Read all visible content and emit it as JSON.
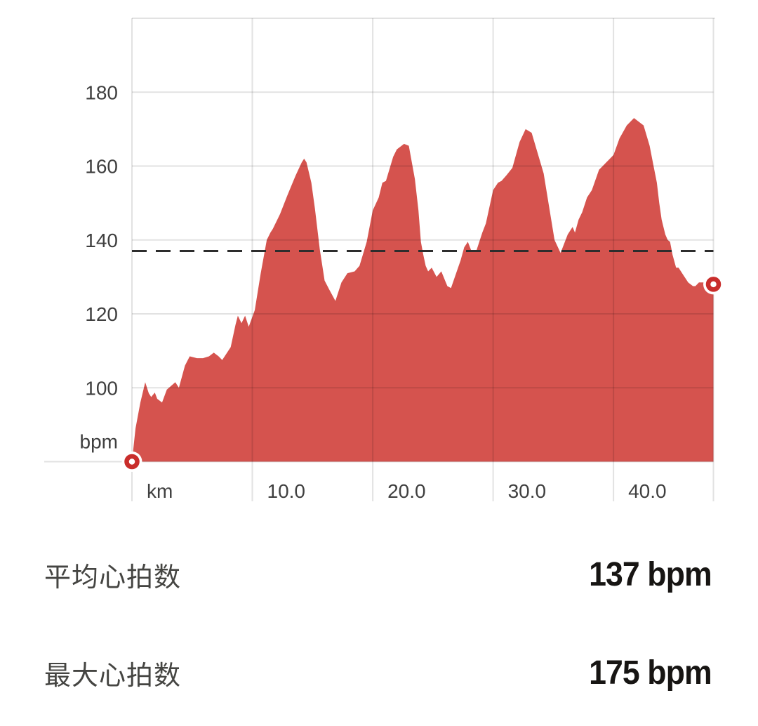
{
  "chart_data": {
    "type": "area",
    "title": "",
    "x_unit": "km",
    "y_unit": "bpm",
    "x_range": [
      0,
      48.3
    ],
    "y_range": [
      80,
      200
    ],
    "grid": true,
    "legend": "none",
    "average_line_bpm": 137,
    "start_end_markers": true,
    "x_ticks": [
      {
        "value": 0,
        "label": "km"
      },
      {
        "value": 10,
        "label": "10.0"
      },
      {
        "value": 20,
        "label": "20.0"
      },
      {
        "value": 30,
        "label": "30.0"
      },
      {
        "value": 40,
        "label": "40.0"
      }
    ],
    "y_ticks": [
      {
        "value": 100,
        "label": "100"
      },
      {
        "value": 120,
        "label": "120"
      },
      {
        "value": 140,
        "label": "140"
      },
      {
        "value": 160,
        "label": "160"
      },
      {
        "value": 180,
        "label": "180"
      }
    ],
    "y_axis_unit_label": "bpm",
    "series": [
      {
        "name": "heart-rate",
        "color": "#d5534e",
        "points": [
          [
            0,
            80
          ],
          [
            0.3,
            89
          ],
          [
            0.7,
            96
          ],
          [
            1.1,
            101.5
          ],
          [
            1.4,
            98.5
          ],
          [
            1.6,
            97.5
          ],
          [
            1.9,
            98.7
          ],
          [
            2.1,
            97
          ],
          [
            2.5,
            96
          ],
          [
            2.9,
            99.5
          ],
          [
            3.6,
            101.5
          ],
          [
            3.9,
            100
          ],
          [
            4.4,
            106
          ],
          [
            4.8,
            108.5
          ],
          [
            5.4,
            108
          ],
          [
            5.9,
            108
          ],
          [
            6.4,
            108.5
          ],
          [
            6.8,
            109.5
          ],
          [
            7.2,
            108.5
          ],
          [
            7.5,
            107.5
          ],
          [
            8.2,
            111
          ],
          [
            8.6,
            117
          ],
          [
            8.8,
            119.5
          ],
          [
            9.1,
            117.5
          ],
          [
            9.4,
            119.5
          ],
          [
            9.7,
            116.5
          ],
          [
            10.2,
            121
          ],
          [
            10.7,
            131
          ],
          [
            11.2,
            140
          ],
          [
            11.5,
            142
          ],
          [
            11.7,
            143
          ],
          [
            12.3,
            147
          ],
          [
            12.9,
            152
          ],
          [
            13.6,
            157.5
          ],
          [
            14.1,
            161
          ],
          [
            14.3,
            162
          ],
          [
            14.5,
            161
          ],
          [
            14.9,
            155.5
          ],
          [
            15.2,
            148.5
          ],
          [
            15.6,
            137.5
          ],
          [
            16.0,
            129
          ],
          [
            16.4,
            126.5
          ],
          [
            16.9,
            123.5
          ],
          [
            17.4,
            128.5
          ],
          [
            17.9,
            131
          ],
          [
            18.5,
            131.5
          ],
          [
            18.9,
            133
          ],
          [
            19.5,
            139.5
          ],
          [
            20.0,
            148
          ],
          [
            20.5,
            151.5
          ],
          [
            20.8,
            155.5
          ],
          [
            21.1,
            156
          ],
          [
            21.7,
            162.5
          ],
          [
            22.0,
            164.5
          ],
          [
            22.6,
            166
          ],
          [
            23.0,
            165.5
          ],
          [
            23.5,
            156.5
          ],
          [
            23.8,
            148
          ],
          [
            24.0,
            139.5
          ],
          [
            24.2,
            136
          ],
          [
            24.4,
            133
          ],
          [
            24.6,
            131.5
          ],
          [
            24.9,
            132.5
          ],
          [
            25.3,
            130
          ],
          [
            25.7,
            131.5
          ],
          [
            26.2,
            127.5
          ],
          [
            26.5,
            127
          ],
          [
            27.3,
            134.5
          ],
          [
            27.6,
            138
          ],
          [
            27.9,
            139.5
          ],
          [
            28.2,
            137
          ],
          [
            28.6,
            137
          ],
          [
            29.1,
            142
          ],
          [
            29.4,
            144.5
          ],
          [
            30.0,
            153.5
          ],
          [
            30.4,
            155.5
          ],
          [
            30.7,
            156
          ],
          [
            31.1,
            157.5
          ],
          [
            31.6,
            159.5
          ],
          [
            32.2,
            166.5
          ],
          [
            32.7,
            170
          ],
          [
            33.2,
            169
          ],
          [
            34.2,
            158
          ],
          [
            34.7,
            148
          ],
          [
            35.1,
            140
          ],
          [
            35.6,
            136.5
          ],
          [
            36.2,
            141.5
          ],
          [
            36.6,
            143.5
          ],
          [
            36.8,
            142
          ],
          [
            37.1,
            145.5
          ],
          [
            37.4,
            147.5
          ],
          [
            37.8,
            151.5
          ],
          [
            38.2,
            153.5
          ],
          [
            38.8,
            159
          ],
          [
            39.1,
            160
          ],
          [
            39.4,
            161
          ],
          [
            39.7,
            162
          ],
          [
            40.0,
            163
          ],
          [
            40.5,
            167.5
          ],
          [
            41.1,
            171
          ],
          [
            41.7,
            173
          ],
          [
            42.5,
            171
          ],
          [
            43.0,
            165.5
          ],
          [
            43.3,
            160.5
          ],
          [
            43.6,
            155.5
          ],
          [
            43.8,
            150
          ],
          [
            44.0,
            145.5
          ],
          [
            44.3,
            141.5
          ],
          [
            44.5,
            140
          ],
          [
            44.7,
            139.5
          ],
          [
            44.9,
            136
          ],
          [
            45.2,
            132.5
          ],
          [
            45.4,
            132.5
          ],
          [
            45.8,
            130.5
          ],
          [
            46.2,
            128.5
          ],
          [
            46.6,
            127.5
          ],
          [
            46.8,
            127.5
          ],
          [
            47.1,
            128.5
          ],
          [
            47.5,
            128.5
          ],
          [
            48.3,
            128
          ]
        ]
      }
    ]
  },
  "colors": {
    "area_fill": "#d5534e",
    "marker_ring": "#c92d2b",
    "marker_halo": "#ffffff",
    "average_line": "#2d2d2d",
    "grid_line": "rgba(0,0,0,0.115)",
    "axis_text": "#3f3f3f"
  },
  "stats": {
    "rows": [
      {
        "label": "平均心拍数",
        "value": "137 bpm"
      },
      {
        "label": "最大心拍数",
        "value": "175 bpm"
      }
    ]
  }
}
